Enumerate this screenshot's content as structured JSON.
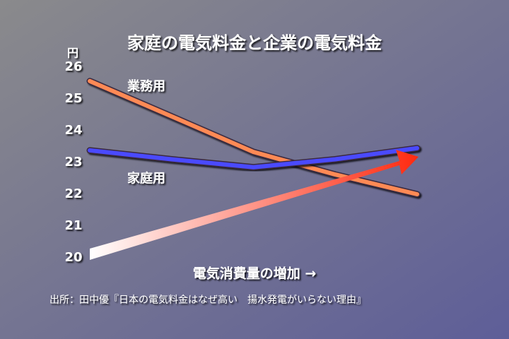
{
  "chart_data": {
    "type": "line",
    "title": "家庭の電気料金と企業の電気料金",
    "y_label": "円",
    "x_label": "電気消費量の増加 →",
    "source": "出所：田中優『日本の電気料金はなぜ高い　揚水発電がいらない理由』",
    "categories": [
      null,
      null,
      null,
      null,
      null
    ],
    "series": [
      {
        "name": "業務用",
        "color": "#ff8a55",
        "values": [
          25.56,
          24.45,
          23.33,
          22.62,
          22.0
        ]
      },
      {
        "name": "家庭用",
        "color": "#4a4aff",
        "values": [
          23.38,
          23.1,
          22.85,
          23.1,
          23.45
        ]
      }
    ],
    "ylim": [
      20,
      26
    ],
    "yticks": [
      20,
      21,
      22,
      23,
      24,
      25,
      26
    ],
    "grid": true
  }
}
